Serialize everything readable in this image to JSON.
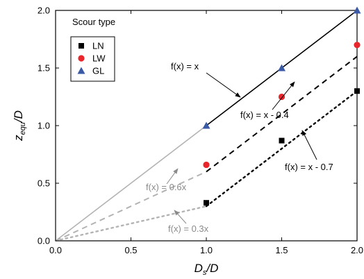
{
  "chart_data": {
    "type": "scatter",
    "x_axis": {
      "label_main": "D",
      "label_sub": "s",
      "label_tail": "/D",
      "range": [
        0.0,
        2.0
      ],
      "ticks": [
        0.0,
        0.5,
        1.0,
        1.5,
        2.0
      ],
      "tick_labels": [
        "0.0",
        "0.5",
        "1.0",
        "1.5",
        "2.0"
      ]
    },
    "y_axis": {
      "label_main": "z",
      "label_sub": "equ",
      "label_tail": "/D",
      "range": [
        0.0,
        2.0
      ],
      "ticks": [
        0.0,
        0.5,
        1.0,
        1.5,
        2.0
      ],
      "tick_labels": [
        "0.0",
        "0.5",
        "1.0",
        "1.5",
        "2.0"
      ]
    },
    "grid": false,
    "legend": {
      "title": "Scour type",
      "position": "top-left",
      "entries": [
        {
          "name": "LN",
          "marker": "square",
          "color": "#000000"
        },
        {
          "name": "LW",
          "marker": "circle",
          "color": "#e8262b"
        },
        {
          "name": "GL",
          "marker": "triangle",
          "color": "#3a5aa6"
        }
      ]
    },
    "series": [
      {
        "name": "LN",
        "marker": "square",
        "color": "#000000",
        "x": [
          1.0,
          1.5,
          2.0
        ],
        "y": [
          0.33,
          0.87,
          1.3
        ]
      },
      {
        "name": "LW",
        "marker": "circle",
        "color": "#e8262b",
        "x": [
          1.0,
          1.5,
          2.0
        ],
        "y": [
          0.66,
          1.25,
          1.7
        ]
      },
      {
        "name": "GL",
        "marker": "triangle",
        "color": "#3a5aa6",
        "x": [
          1.0,
          1.5,
          2.0
        ],
        "y": [
          1.0,
          1.5,
          2.0
        ]
      }
    ],
    "fit_lines": [
      {
        "label": "f(x) = x",
        "x": [
          1.0,
          2.0
        ],
        "y": [
          1.0,
          2.0
        ],
        "style": "solid",
        "color": "#000000"
      },
      {
        "label": "f(x) = x - 0.4",
        "x": [
          1.0,
          2.0
        ],
        "y": [
          0.6,
          1.6
        ],
        "style": "dashed",
        "color": "#000000"
      },
      {
        "label": "f(x) = x - 0.7",
        "x": [
          1.0,
          2.0
        ],
        "y": [
          0.3,
          1.3
        ],
        "style": "dotted",
        "color": "#000000"
      },
      {
        "label": "",
        "x": [
          0.0,
          1.0
        ],
        "y": [
          0.0,
          1.0
        ],
        "style": "solid",
        "color": "#b3b3b3"
      },
      {
        "label": "f(x) = 0.6x",
        "x": [
          0.0,
          1.0
        ],
        "y": [
          0.0,
          0.6
        ],
        "style": "dashed",
        "color": "#b3b3b3"
      },
      {
        "label": "f(x) = 0.3x",
        "x": [
          0.0,
          1.0
        ],
        "y": [
          0.0,
          0.3
        ],
        "style": "dotted",
        "color": "#b3b3b3"
      }
    ],
    "annotations": [
      {
        "text": "f(x) = x",
        "color": "#000000"
      },
      {
        "text": "f(x) = x - 0.4",
        "color": "#000000"
      },
      {
        "text": "f(x) = x - 0.7",
        "color": "#000000"
      },
      {
        "text": "f(x) = 0.6x",
        "color": "#8a8a8a"
      },
      {
        "text": "f(x) = 0.3x",
        "color": "#8a8a8a"
      }
    ]
  }
}
